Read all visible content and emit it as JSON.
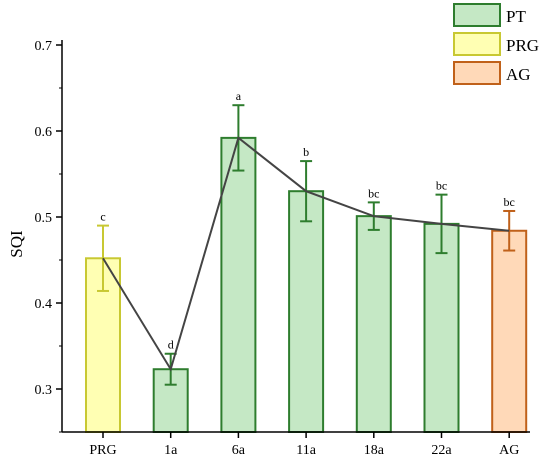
{
  "chart_data": {
    "type": "bar",
    "title": "",
    "xlabel": "",
    "ylabel": "SQI",
    "ylim": [
      0.25,
      0.7
    ],
    "yticks": [
      "0.3",
      "0.4",
      "0.5",
      "0.6",
      "0.7"
    ],
    "ytick_values": [
      0.3,
      0.4,
      0.5,
      0.6,
      0.7
    ],
    "categories": [
      "PRG",
      "1a",
      "6a",
      "11a",
      "18a",
      "22a",
      "AG"
    ],
    "values": [
      0.452,
      0.323,
      0.592,
      0.53,
      0.501,
      0.492,
      0.484
    ],
    "errors": [
      0.038,
      0.018,
      0.038,
      0.035,
      0.016,
      0.034,
      0.023
    ],
    "significance_letters": [
      "c",
      "d",
      "a",
      "b",
      "bc",
      "bc",
      "bc"
    ],
    "groups": [
      "PRG",
      "PT",
      "PT",
      "PT",
      "PT",
      "PT",
      "AG"
    ],
    "connecting_line": true,
    "grid": false,
    "legend_position": "top-right",
    "legend": [
      {
        "name": "PT",
        "fill": "#c5e8c5",
        "stroke": "#2e7d2e"
      },
      {
        "name": "PRG",
        "fill": "#ffffb3",
        "stroke": "#c8c832"
      },
      {
        "name": "AG",
        "fill": "#ffd9b8",
        "stroke": "#c0611a"
      }
    ],
    "line_color": "#444444"
  }
}
